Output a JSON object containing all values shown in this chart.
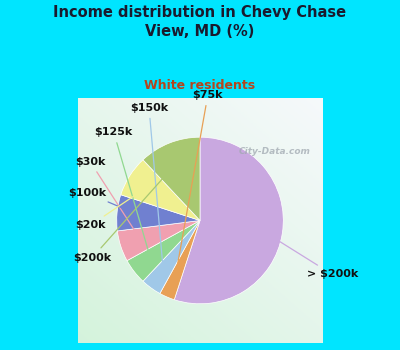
{
  "title": "Income distribution in Chevy Chase\nView, MD (%)",
  "subtitle": "White residents",
  "title_color": "#1a1a2e",
  "subtitle_color": "#b5451b",
  "background_color": "#00e5ff",
  "watermark": "City-Data.com",
  "labels": [
    "> $200k",
    "$75k",
    "$150k",
    "$125k",
    "$30k",
    "$100k",
    "$20k",
    "$200k"
  ],
  "values": [
    55,
    3,
    4,
    5,
    6,
    7,
    8,
    12
  ],
  "slice_colors": [
    "#c9a8e0",
    "#e8a055",
    "#a0c8e8",
    "#90d890",
    "#f0a0b0",
    "#7080d0",
    "#f0f090",
    "#a8c870"
  ],
  "label_color": "#111111",
  "label_fontsize": 8.0,
  "title_fontsize": 10.5,
  "subtitle_fontsize": 9.0
}
